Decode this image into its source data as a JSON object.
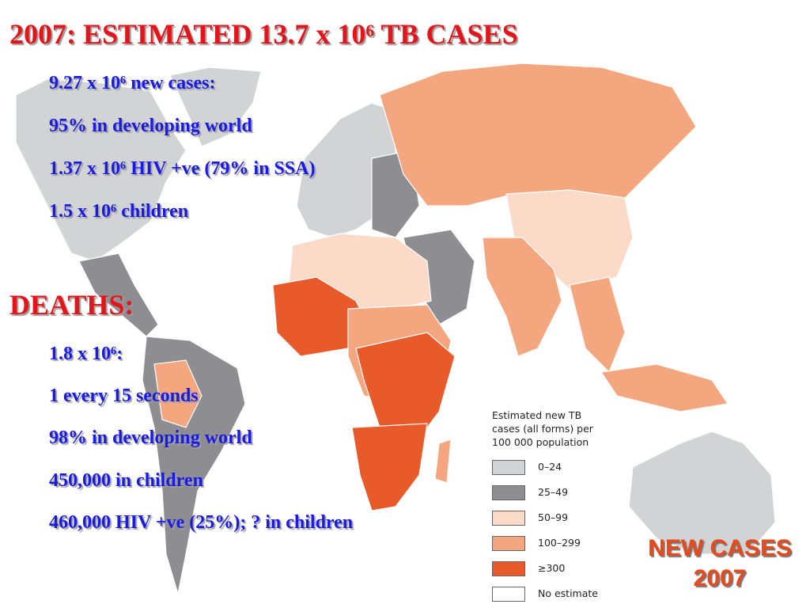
{
  "slide": {
    "title": "2007: ESTIMATED 13.7 x 10⁶ TB CASES",
    "new_cases": [
      "9.27 x 10⁶ new cases:",
      "95% in developing world",
      "1.37 x 10⁶ HIV +ve (79% in SSA)",
      "1.5 x 10⁶ children"
    ],
    "deaths_heading": "DEATHS:",
    "deaths": [
      "1.8 x 10⁶:",
      "1 every 15 seconds",
      "98% in developing world",
      "450,000 in children",
      "460,000 HIV +ve (25%); ? in children"
    ],
    "map_label": [
      "NEW CASES",
      "2007"
    ],
    "legend": {
      "title": [
        "Estimated new TB",
        "cases (all forms) per",
        "100 000 population"
      ],
      "entries": [
        {
          "label": "0–24",
          "color": "#d2d3d5"
        },
        {
          "label": "25–49",
          "color": "#8d8d92"
        },
        {
          "label": "50–99",
          "color": "#fcdac8"
        },
        {
          "label": "100–299",
          "color": "#f4a67f"
        },
        {
          "label": "≥300",
          "color": "#e95a2a"
        },
        {
          "label": "No estimate",
          "color": "#ffffff"
        }
      ]
    }
  }
}
